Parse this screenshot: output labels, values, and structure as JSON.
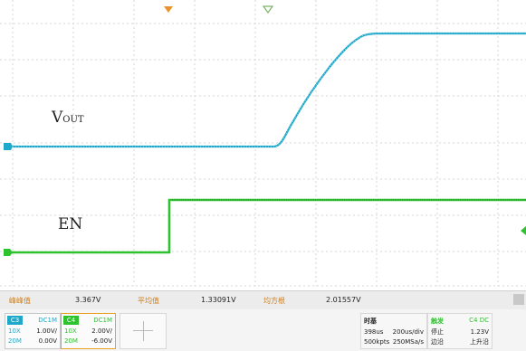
{
  "signals": {
    "vout_main": "V",
    "vout_sub": "OUT",
    "en": "EN"
  },
  "markers": {
    "ch3_level": "C3"
  },
  "stats": [
    {
      "name": "峰峰值",
      "value": "3.367V"
    },
    {
      "name": "平均值",
      "value": "1.33091V"
    },
    {
      "name": "均方根",
      "value": "2.01557V"
    }
  ],
  "channels": [
    {
      "tag": "C3",
      "coupling": "DC1M",
      "probe": "10X",
      "scale": "1.00V/",
      "bw": "20M",
      "offset": "0.00V",
      "color": "#1fa8c9"
    },
    {
      "tag": "C4",
      "coupling": "DC1M",
      "probe": "10X",
      "scale": "2.00V/",
      "bw": "20M",
      "offset": "-6.00V",
      "color": "#2ec22e"
    }
  ],
  "timebase": {
    "title": "时基",
    "delay": "398us",
    "scale": "200us/div",
    "memory": "500kpts",
    "rate": "250MSa/s"
  },
  "acquire": {
    "state": "停止",
    "type": "边沿"
  },
  "trigger": {
    "title": "触发",
    "source": "C4 DC",
    "level": "1.23V",
    "slope": "上升沿"
  },
  "colors": {
    "ch3": "#1fa8c9",
    "ch4": "#2ec22e",
    "trigger_marker": "#e8922a",
    "grid": "#d6d6d6",
    "close_button": "#c8c8c8"
  }
}
